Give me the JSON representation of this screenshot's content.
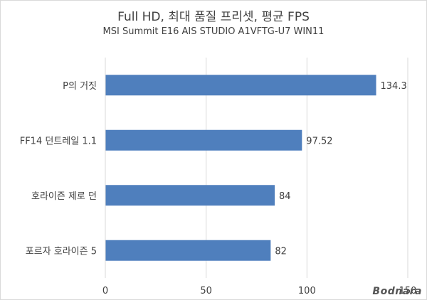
{
  "chart_data": {
    "type": "bar",
    "orientation": "horizontal",
    "title": "Full HD, 최대 품질 프리셋, 평균 FPS",
    "subtitle": "MSI Summit E16 AIS STUDIO A1VFTG-U7 WIN11",
    "categories": [
      "P의 거짓",
      "FF14 던트레일 1.1",
      "호라이즌 제로 던",
      "포르자 호라이즌 5"
    ],
    "values": [
      134.3,
      97.52,
      84,
      82
    ],
    "value_labels": [
      "134.3",
      "97.52",
      "84",
      "82"
    ],
    "xlim": [
      0,
      150
    ],
    "xticks": [
      0,
      50,
      100,
      150
    ],
    "grid": "vertical",
    "legend": "none",
    "bar_color": "#4f7fbd",
    "grid_color": "#d9d9d9"
  },
  "watermark": "Bodnara"
}
